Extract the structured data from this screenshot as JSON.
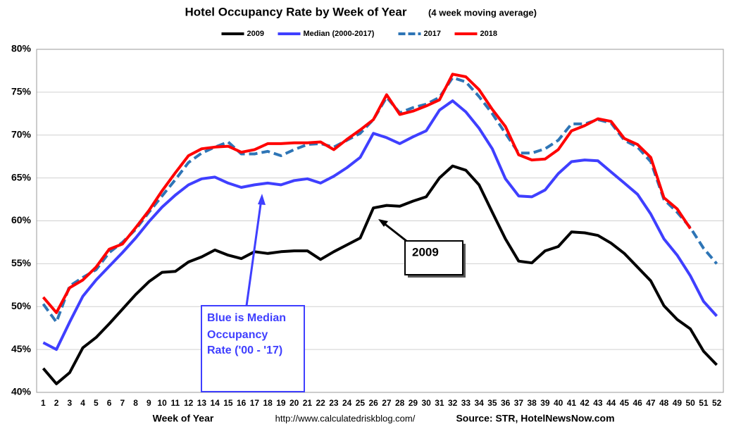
{
  "chart_data": {
    "type": "line",
    "title": "Hotel Occupancy Rate by  Week of Year",
    "subtitle": "(4 week moving average)",
    "x_label": "Week of Year",
    "source_url": "http://www.calculatedriskblog.com/",
    "source": "Source: STR, HotelNewsNow.com",
    "categories": [
      "1",
      "2",
      "3",
      "4",
      "5",
      "6",
      "7",
      "8",
      "9",
      "10",
      "11",
      "12",
      "13",
      "14",
      "15",
      "16",
      "17",
      "18",
      "19",
      "20",
      "21",
      "22",
      "23",
      "24",
      "25",
      "26",
      "27",
      "28",
      "29",
      "30",
      "31",
      "32",
      "33",
      "34",
      "35",
      "36",
      "37",
      "38",
      "39",
      "40",
      "41",
      "42",
      "43",
      "44",
      "45",
      "46",
      "47",
      "48",
      "49",
      "50",
      "51",
      "52"
    ],
    "ylim": [
      40,
      80
    ],
    "yticks": [
      {
        "value": 40,
        "label": "40%"
      },
      {
        "value": 45,
        "label": "45%"
      },
      {
        "value": 50,
        "label": "50%"
      },
      {
        "value": 55,
        "label": "55%"
      },
      {
        "value": 60,
        "label": "60%"
      },
      {
        "value": 65,
        "label": "65%"
      },
      {
        "value": 70,
        "label": "70%"
      },
      {
        "value": 75,
        "label": "75%"
      },
      {
        "value": 80,
        "label": "80%"
      }
    ],
    "grid": true,
    "legend": "top",
    "series": [
      {
        "name": "2009",
        "color": "#000000",
        "dash": false,
        "values": [
          42.8,
          41.0,
          42.3,
          45.2,
          46.4,
          48.0,
          49.7,
          51.4,
          52.9,
          54.0,
          54.1,
          55.2,
          55.8,
          56.6,
          56.0,
          55.6,
          56.4,
          56.2,
          56.4,
          56.5,
          56.5,
          55.5,
          56.4,
          57.2,
          58.0,
          61.5,
          61.8,
          61.7,
          62.3,
          62.8,
          65.0,
          66.4,
          65.9,
          64.2,
          61.0,
          57.9,
          55.3,
          55.1,
          56.5,
          57.0,
          58.7,
          58.6,
          58.3,
          57.4,
          56.2,
          54.6,
          53.0,
          50.1,
          48.5,
          47.4,
          44.8,
          43.2
        ]
      },
      {
        "name": "Median (2000-2017)",
        "color": "#3f3fff",
        "dash": false,
        "values": [
          45.8,
          45.0,
          48.2,
          51.2,
          53.1,
          54.7,
          56.3,
          58.0,
          59.9,
          61.6,
          63.0,
          64.2,
          64.9,
          65.1,
          64.4,
          63.9,
          64.2,
          64.4,
          64.2,
          64.7,
          64.9,
          64.4,
          65.2,
          66.2,
          67.4,
          70.2,
          69.7,
          69.0,
          69.8,
          70.5,
          72.9,
          74.0,
          72.7,
          70.8,
          68.4,
          64.9,
          62.9,
          62.8,
          63.6,
          65.5,
          66.9,
          67.1,
          67.0,
          65.7,
          64.4,
          63.1,
          60.8,
          57.9,
          56.0,
          53.6,
          50.6,
          48.9
        ]
      },
      {
        "name": "2017",
        "color": "#2e75b6",
        "dash": true,
        "values": [
          50.3,
          48.2,
          52.4,
          53.4,
          54.3,
          56.3,
          57.5,
          59.0,
          61.0,
          62.9,
          64.8,
          66.8,
          67.9,
          68.6,
          69.2,
          67.8,
          67.8,
          68.1,
          67.6,
          68.3,
          68.9,
          69.0,
          68.6,
          69.4,
          70.2,
          71.8,
          74.4,
          72.6,
          73.2,
          73.6,
          74.4,
          76.7,
          76.2,
          74.5,
          72.5,
          70.2,
          67.9,
          67.9,
          68.4,
          69.4,
          71.3,
          71.3,
          71.8,
          71.4,
          69.4,
          68.6,
          66.9,
          62.5,
          61.0,
          59.2,
          56.8,
          55.0
        ]
      },
      {
        "name": "2018",
        "color": "#ff0000",
        "dash": false,
        "values": [
          51.1,
          49.3,
          52.2,
          53.1,
          54.6,
          56.7,
          57.3,
          59.2,
          61.2,
          63.5,
          65.6,
          67.6,
          68.4,
          68.6,
          68.7,
          68.0,
          68.3,
          69.0,
          69.0,
          69.1,
          69.1,
          69.2,
          68.3,
          69.5,
          70.6,
          71.8,
          74.7,
          72.4,
          72.8,
          73.4,
          74.1,
          77.1,
          76.8,
          75.3,
          73.0,
          71.0,
          67.7,
          67.1,
          67.2,
          68.3,
          70.5,
          71.1,
          71.9,
          71.6,
          69.6,
          68.9,
          67.4,
          62.7,
          61.4,
          59.1,
          null,
          null
        ]
      }
    ],
    "annotations": [
      {
        "text": "2009"
      },
      {
        "lines": [
          "Blue is Median",
          "Occupancy",
          "Rate ('00 - '17)"
        ]
      }
    ]
  }
}
